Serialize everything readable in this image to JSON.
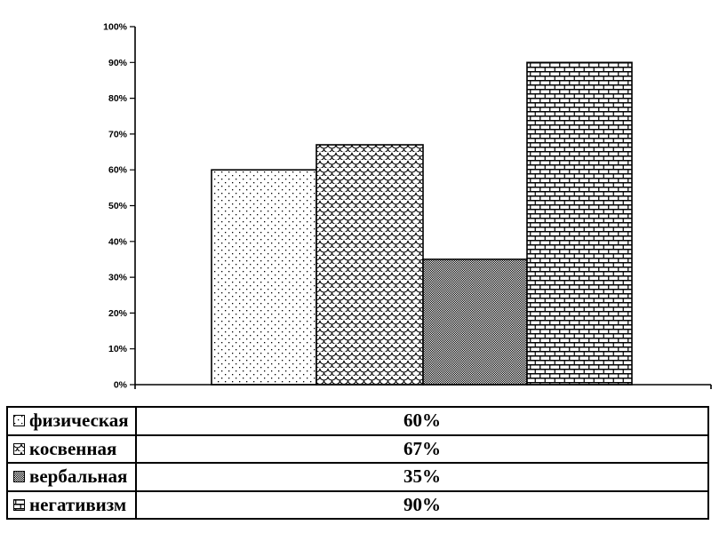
{
  "chart_data": {
    "type": "bar",
    "title": "",
    "xlabel": "",
    "ylabel": "",
    "categories": [
      "физическая",
      "косвенная",
      "вербальная",
      "негативизм"
    ],
    "values": [
      60,
      67,
      35,
      90
    ],
    "ylim": [
      0,
      100
    ],
    "ytick_step": 10,
    "ytick_labels": [
      "0%",
      "10%",
      "20%",
      "30%",
      "40%",
      "50%",
      "60%",
      "70%",
      "80%",
      "90%",
      "100%"
    ],
    "grid": false,
    "legend_position": "bottom-table",
    "bar_patterns": [
      "sparse-dots",
      "fish-scales",
      "dense-checker",
      "bricks"
    ],
    "colors": {
      "foreground": "#000000",
      "background": "#ffffff"
    }
  },
  "legend_table": {
    "rows": [
      {
        "label": "физическая",
        "value": "60%",
        "pattern": "sparse-dots"
      },
      {
        "label": "косвенная",
        "value": "67%",
        "pattern": "fish-scales"
      },
      {
        "label": "вербальная",
        "value": "35%",
        "pattern": "dense-checker"
      },
      {
        "label": "негативизм",
        "value": "90%",
        "pattern": "bricks"
      }
    ]
  }
}
